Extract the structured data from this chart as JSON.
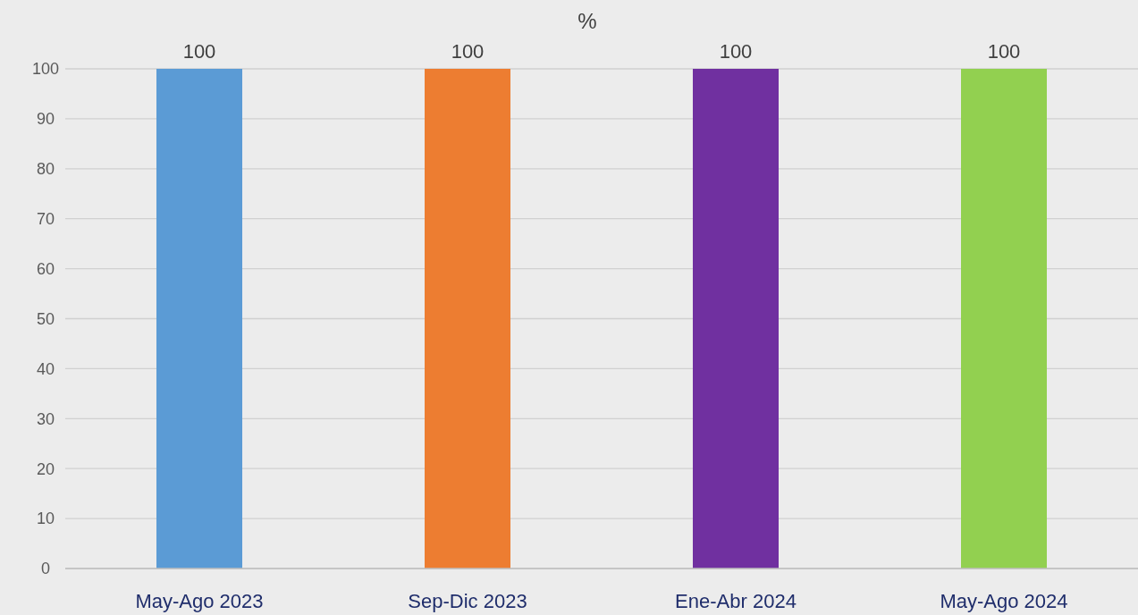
{
  "chart_data": {
    "type": "bar",
    "title": "%",
    "categories": [
      "May-Ago 2023",
      "Sep-Dic 2023",
      "Ene-Abr 2024",
      "May-Ago 2024"
    ],
    "values": [
      100,
      100,
      100,
      100
    ],
    "colors": [
      "#5b9bd5",
      "#ed7d31",
      "#7030a0",
      "#92d050"
    ],
    "ylim": [
      0,
      100
    ],
    "yticks": [
      0,
      10,
      20,
      30,
      40,
      50,
      60,
      70,
      80,
      90,
      100
    ],
    "grid": "y",
    "data_labels": true
  }
}
